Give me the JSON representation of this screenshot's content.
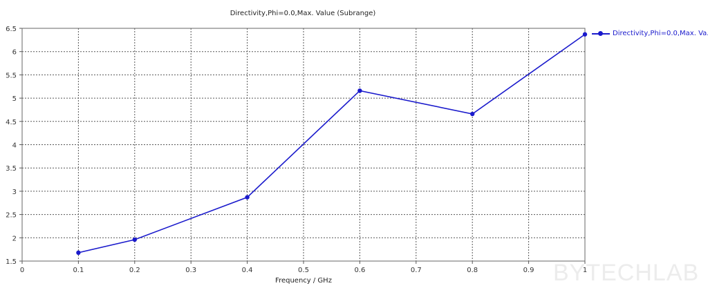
{
  "chart_data": {
    "type": "line",
    "title": "Directivity,Phi=0.0,Max. Value (Subrange)",
    "xlabel": "Frequency / GHz",
    "ylabel": "",
    "xlim": [
      0,
      1
    ],
    "ylim": [
      1.5,
      6.5
    ],
    "x_ticks": [
      "0",
      "0.1",
      "0.2",
      "0.3",
      "0.4",
      "0.5",
      "0.6",
      "0.7",
      "0.8",
      "0.9",
      "1"
    ],
    "y_ticks": [
      "1.5",
      "2",
      "2.5",
      "3",
      "3.5",
      "4",
      "4.5",
      "5",
      "5.5",
      "6",
      "6.5"
    ],
    "grid": true,
    "legend_position": "right",
    "series": [
      {
        "name": "Directivity,Phi=0.0,Max. Va...",
        "color": "#1a1acc",
        "marker": "circle",
        "x": [
          0.1,
          0.2,
          0.4,
          0.6,
          0.8,
          1.0
        ],
        "values": [
          1.68,
          1.96,
          2.87,
          5.16,
          4.66,
          6.37
        ]
      }
    ]
  },
  "legend": {
    "label": "Directivity,Phi=0.0,Max. Va..."
  },
  "watermark": "BYTECHLAB"
}
